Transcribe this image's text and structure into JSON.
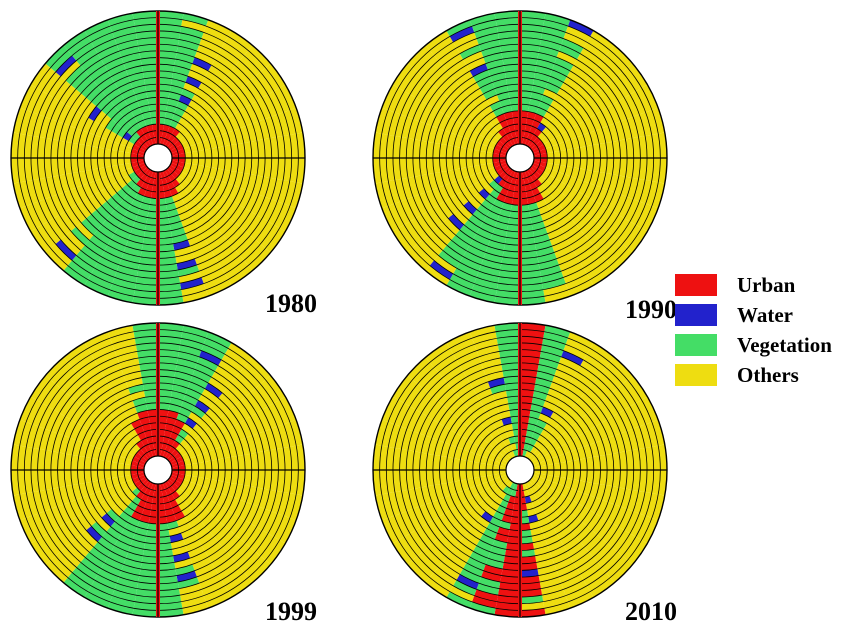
{
  "chart_data": {
    "type": "polar-ring-map",
    "rings": 20,
    "sectors": 36,
    "sector_width_deg": 10,
    "sector_angle_convention": "0 = north, clockwise",
    "value_units": "cover class per ring cell",
    "legend": [
      {
        "key": "urban",
        "label": "Urban",
        "color": "#ee1111"
      },
      {
        "key": "water",
        "label": "Water",
        "color": "#2222cc"
      },
      {
        "key": "vegetation",
        "label": "Vegetation",
        "color": "#44dd66"
      },
      {
        "key": "others",
        "label": "Others",
        "color": "#eedd11"
      }
    ],
    "panels": [
      {
        "year": "1980",
        "urban_core_rings": {
          "north": 3,
          "south": 4
        },
        "urban_spine_rings": 20,
        "vegetation_corridors": [
          {
            "center_deg": -15,
            "half_width_deg_inner": 45,
            "half_width_deg_outer": 30
          },
          {
            "center_deg": 195,
            "half_width_deg_inner": 40,
            "half_width_deg_outer": 25
          }
        ],
        "water_edge": true
      },
      {
        "year": "1990",
        "urban_core_rings": {
          "north": 5,
          "south": 5
        },
        "urban_spine_rings": 20,
        "vegetation_corridors": [
          {
            "center_deg": 0,
            "half_width_deg_inner": 30,
            "half_width_deg_outer": 25
          },
          {
            "center_deg": 190,
            "half_width_deg_inner": 35,
            "half_width_deg_outer": 25
          }
        ],
        "water_edge": true
      },
      {
        "year": "1999",
        "urban_core_rings": {
          "north": 7,
          "south": 6
        },
        "urban_spine_rings": 20,
        "vegetation_corridors": [
          {
            "center_deg": 10,
            "half_width_deg_inner": 30,
            "half_width_deg_outer": 15
          },
          {
            "center_deg": 195,
            "half_width_deg_inner": 30,
            "half_width_deg_outer": 25
          }
        ],
        "water_edge": true
      },
      {
        "year": "2010",
        "urban_core_rings": {
          "north": 20,
          "south": 20
        },
        "urban_spine_rings": 20,
        "urban_corridors": [
          {
            "center_deg": 5,
            "half_width_deg": 8
          },
          {
            "center_deg": 185,
            "half_width_deg": 10
          }
        ],
        "vegetation_corridors": [
          {
            "center_deg": 5,
            "half_width_deg_inner": 22,
            "half_width_deg_outer": 12
          },
          {
            "center_deg": 190,
            "half_width_deg_inner": 22,
            "half_width_deg_outer": 15
          }
        ],
        "water_edge": true
      }
    ]
  }
}
